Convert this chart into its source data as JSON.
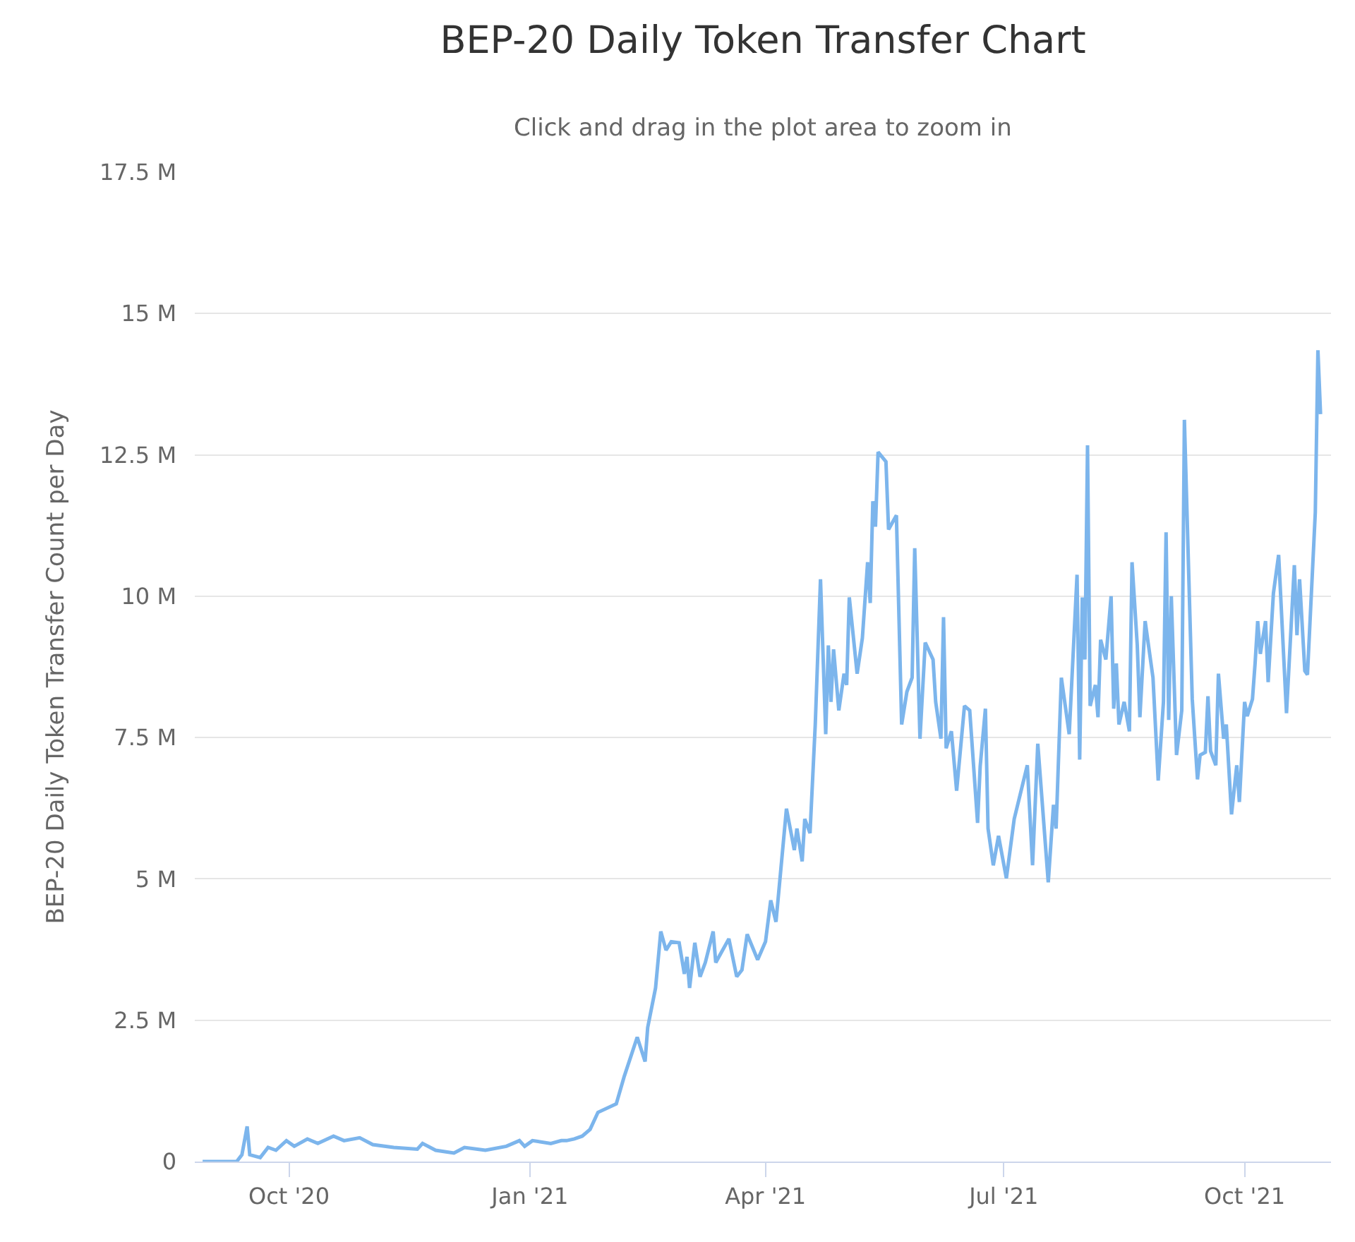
{
  "chart_data": {
    "type": "line",
    "title": "BEP-20 Daily Token Transfer Chart",
    "subtitle": "Click and drag in the plot area to zoom in",
    "ylabel": "BEP-20 Daily Token Transfer Count per Day",
    "x": [
      "2020-08-29",
      "2020-09-11",
      "2020-09-13",
      "2020-09-15",
      "2020-09-16",
      "2020-09-20",
      "2020-09-23",
      "2020-09-26",
      "2020-09-30",
      "2020-10-03",
      "2020-10-08",
      "2020-10-12",
      "2020-10-18",
      "2020-10-22",
      "2020-10-28",
      "2020-11-02",
      "2020-11-10",
      "2020-11-19",
      "2020-11-21",
      "2020-11-26",
      "2020-12-03",
      "2020-12-07",
      "2020-12-15",
      "2020-12-23",
      "2020-12-28",
      "2020-12-30",
      "2021-01-02",
      "2021-01-09",
      "2021-01-13",
      "2021-01-15",
      "2021-01-18",
      "2021-01-21",
      "2021-01-24",
      "2021-01-27",
      "2021-02-03",
      "2021-02-06",
      "2021-02-11",
      "2021-02-14",
      "2021-02-15",
      "2021-02-18",
      "2021-02-20",
      "2021-02-22",
      "2021-02-24",
      "2021-02-27",
      "2021-03-01",
      "2021-03-02",
      "2021-03-03",
      "2021-03-05",
      "2021-03-07",
      "2021-03-09",
      "2021-03-12",
      "2021-03-13",
      "2021-03-18",
      "2021-03-21",
      "2021-03-23",
      "2021-03-25",
      "2021-03-29",
      "2021-04-01",
      "2021-04-03",
      "2021-04-05",
      "2021-04-06",
      "2021-04-09",
      "2021-04-12",
      "2021-04-13",
      "2021-04-15",
      "2021-04-16",
      "2021-04-18",
      "2021-04-20",
      "2021-04-22",
      "2021-04-24",
      "2021-04-25",
      "2021-04-26",
      "2021-04-27",
      "2021-04-29",
      "2021-05-01",
      "2021-05-02",
      "2021-05-03",
      "2021-05-06",
      "2021-05-08",
      "2021-05-10",
      "2021-05-11",
      "2021-05-12",
      "2021-05-13",
      "2021-05-14",
      "2021-05-17",
      "2021-05-18",
      "2021-05-21",
      "2021-05-23",
      "2021-05-25",
      "2021-05-27",
      "2021-05-28",
      "2021-05-30",
      "2021-06-01",
      "2021-06-04",
      "2021-06-05",
      "2021-06-07",
      "2021-06-08",
      "2021-06-09",
      "2021-06-11",
      "2021-06-13",
      "2021-06-16",
      "2021-06-18",
      "2021-06-21",
      "2021-06-22",
      "2021-06-24",
      "2021-06-25",
      "2021-06-27",
      "2021-06-29",
      "2021-07-02",
      "2021-07-05",
      "2021-07-07",
      "2021-07-10",
      "2021-07-12",
      "2021-07-14",
      "2021-07-18",
      "2021-07-20",
      "2021-07-21",
      "2021-07-23",
      "2021-07-26",
      "2021-07-29",
      "2021-07-30",
      "2021-07-31",
      "2021-08-01",
      "2021-08-02",
      "2021-08-03",
      "2021-08-05",
      "2021-08-06",
      "2021-08-07",
      "2021-08-09",
      "2021-08-11",
      "2021-08-12",
      "2021-08-13",
      "2021-08-14",
      "2021-08-16",
      "2021-08-18",
      "2021-08-19",
      "2021-08-21",
      "2021-08-22",
      "2021-08-24",
      "2021-08-27",
      "2021-08-29",
      "2021-08-31",
      "2021-09-01",
      "2021-09-02",
      "2021-09-03",
      "2021-09-05",
      "2021-09-07",
      "2021-09-08",
      "2021-09-11",
      "2021-09-13",
      "2021-09-14",
      "2021-09-16",
      "2021-09-17",
      "2021-09-18",
      "2021-09-20",
      "2021-09-21",
      "2021-09-23",
      "2021-09-24",
      "2021-09-26",
      "2021-09-28",
      "2021-09-29",
      "2021-10-01",
      "2021-10-02",
      "2021-10-04",
      "2021-10-05",
      "2021-10-06",
      "2021-10-07",
      "2021-10-09",
      "2021-10-10",
      "2021-10-12",
      "2021-10-14",
      "2021-10-17",
      "2021-10-20",
      "2021-10-21",
      "2021-10-22",
      "2021-10-24",
      "2021-10-25",
      "2021-10-28",
      "2021-10-29",
      "2021-10-30"
    ],
    "series": [
      {
        "color": "#7cb5ec",
        "values": [
          0,
          0,
          0.12,
          0.62,
          0.12,
          0.07,
          0.25,
          0.2,
          0.37,
          0.27,
          0.4,
          0.32,
          0.45,
          0.37,
          0.42,
          0.3,
          0.25,
          0.22,
          0.32,
          0.2,
          0.15,
          0.25,
          0.2,
          0.27,
          0.37,
          0.27,
          0.37,
          0.32,
          0.37,
          0.37,
          0.4,
          0.45,
          0.57,
          0.87,
          1.02,
          1.5,
          2.2,
          1.77,
          2.37,
          3.07,
          4.07,
          3.74,
          3.89,
          3.87,
          3.32,
          3.62,
          3.07,
          3.87,
          3.27,
          3.52,
          4.07,
          3.52,
          3.94,
          3.27,
          3.39,
          4.02,
          3.57,
          3.89,
          4.62,
          4.24,
          4.74,
          6.24,
          5.51,
          5.89,
          5.31,
          6.06,
          5.81,
          7.73,
          10.3,
          7.56,
          9.13,
          8.13,
          9.06,
          7.98,
          8.63,
          8.43,
          9.98,
          8.63,
          9.26,
          10.6,
          9.88,
          11.68,
          11.23,
          12.55,
          12.38,
          11.18,
          11.43,
          7.73,
          8.31,
          8.56,
          10.85,
          7.48,
          9.18,
          8.88,
          8.13,
          7.48,
          9.63,
          7.31,
          7.61,
          6.56,
          8.06,
          7.98,
          5.99,
          6.99,
          8.01,
          5.89,
          5.24,
          5.76,
          5.01,
          6.06,
          6.44,
          7.01,
          5.24,
          7.39,
          4.94,
          6.31,
          5.89,
          8.56,
          7.56,
          10.38,
          7.11,
          9.98,
          8.88,
          12.67,
          8.06,
          8.43,
          7.86,
          9.23,
          8.88,
          10.0,
          8.01,
          8.81,
          7.73,
          8.13,
          7.61,
          10.6,
          9.13,
          7.86,
          9.56,
          8.56,
          6.74,
          8.13,
          11.13,
          7.81,
          10.0,
          7.19,
          7.98,
          13.12,
          8.18,
          6.76,
          7.19,
          7.24,
          8.23,
          7.26,
          7.01,
          8.63,
          7.48,
          7.73,
          6.14,
          7.01,
          6.36,
          8.13,
          7.88,
          8.18,
          8.81,
          9.56,
          8.98,
          9.56,
          8.48,
          10.05,
          10.73,
          7.93,
          10.55,
          9.31,
          10.3,
          8.68,
          8.61,
          11.48,
          14.35,
          13.22
        ]
      }
    ],
    "xlim": [
      "2020-08-26",
      "2021-11-03"
    ],
    "xticks": [
      {
        "value": "2020-10-01",
        "label": "Oct '20"
      },
      {
        "value": "2021-01-01",
        "label": "Jan '21"
      },
      {
        "value": "2021-04-01",
        "label": "Apr '21"
      },
      {
        "value": "2021-07-01",
        "label": "Jul '21"
      },
      {
        "value": "2021-10-01",
        "label": "Oct '21"
      }
    ],
    "ylim": [
      0,
      17.5
    ],
    "yticks": [
      0,
      {
        "value": 2.5,
        "label": "2.5 M"
      },
      {
        "value": 5,
        "label": "5 M"
      },
      {
        "value": 7.5,
        "label": "7.5 M"
      },
      {
        "value": 10,
        "label": "10 M"
      },
      {
        "value": 12.5,
        "label": "12.5 M"
      },
      {
        "value": 15,
        "label": "15 M"
      },
      {
        "value": 17.5,
        "label": "17.5 M"
      }
    ],
    "grid": "y",
    "marker": "none",
    "line_style": "solid"
  }
}
